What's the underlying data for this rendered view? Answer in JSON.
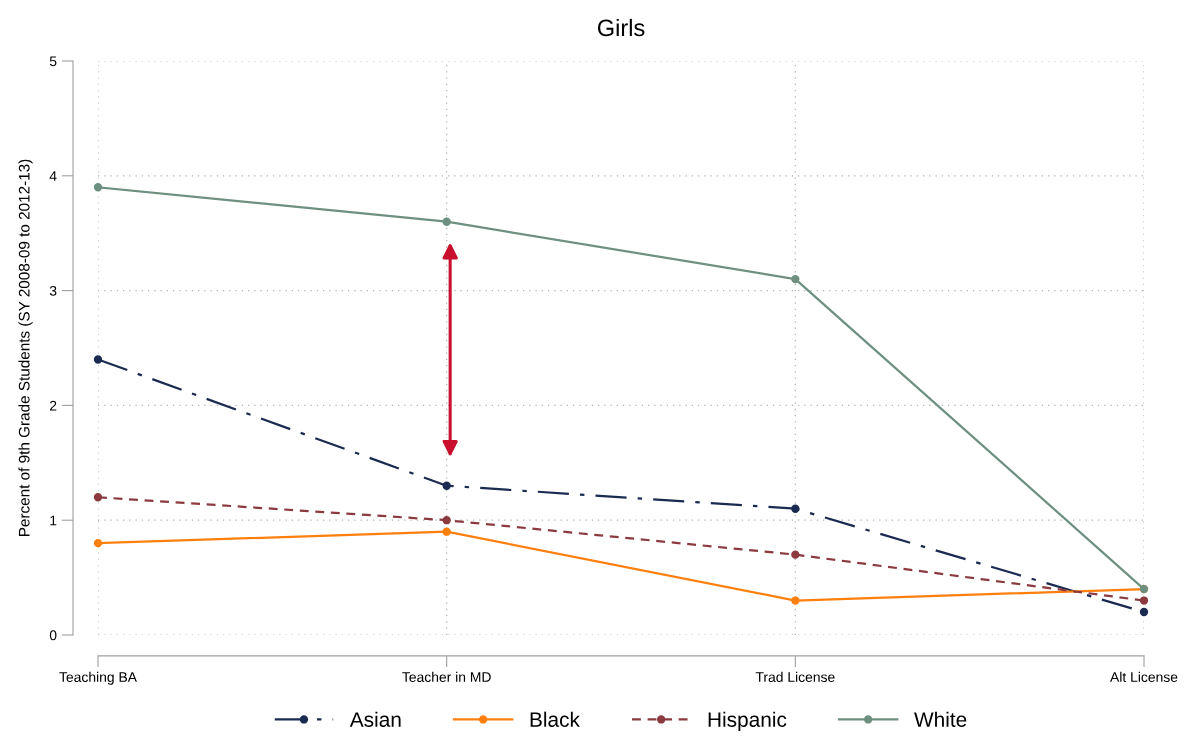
{
  "chart_data": {
    "type": "line",
    "title": "Girls",
    "ylabel": "Percent of 9th Grade Students (SY 2008-09 to 2012-13)",
    "categories": [
      "Teaching BA",
      "Teacher in MD",
      "Trad License",
      "Alt License"
    ],
    "series": [
      {
        "name": "Asian",
        "color": "#1a2a50",
        "line_style": "dashdot",
        "values": [
          2.4,
          1.3,
          1.1,
          0.2
        ]
      },
      {
        "name": "Black",
        "color": "#ff7f0e",
        "line_style": "solid",
        "values": [
          0.8,
          0.9,
          0.3,
          0.4
        ]
      },
      {
        "name": "Hispanic",
        "color": "#8b3a3f",
        "line_style": "dashed",
        "values": [
          1.2,
          1.0,
          0.7,
          0.3
        ]
      },
      {
        "name": "White",
        "color": "#6e9080",
        "line_style": "solid",
        "values": [
          3.9,
          3.6,
          3.1,
          0.4
        ]
      }
    ],
    "ylim": [
      0,
      5
    ],
    "yticks": [
      0,
      1,
      2,
      3,
      4,
      5
    ],
    "grid": true,
    "legend": "bottom",
    "marker": "circle"
  }
}
